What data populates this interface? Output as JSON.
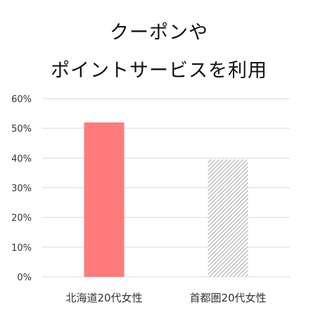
{
  "title_lines": [
    "クーポンや",
    "ポイントサービスを利用"
  ],
  "chart_data": {
    "type": "bar",
    "title": "クーポンや\nポイントサービスを利用",
    "categories": [
      "北海道20代女性",
      "首都圏20代女性"
    ],
    "values": [
      52,
      39.5
    ],
    "y_tick_labels": [
      "60%",
      "50%",
      "40%",
      "30%",
      "20%",
      "10%",
      "0%"
    ],
    "ylim": [
      0,
      60
    ],
    "grid": true,
    "legend": "none",
    "bar_styles": [
      {
        "fill": "#ff7b7b",
        "pattern": "solid"
      },
      {
        "fill": "#ffffff",
        "pattern": "diagonal-hatch",
        "hatch_color": "#a8a8a8"
      }
    ],
    "grid_color": "#d9d9d9"
  }
}
